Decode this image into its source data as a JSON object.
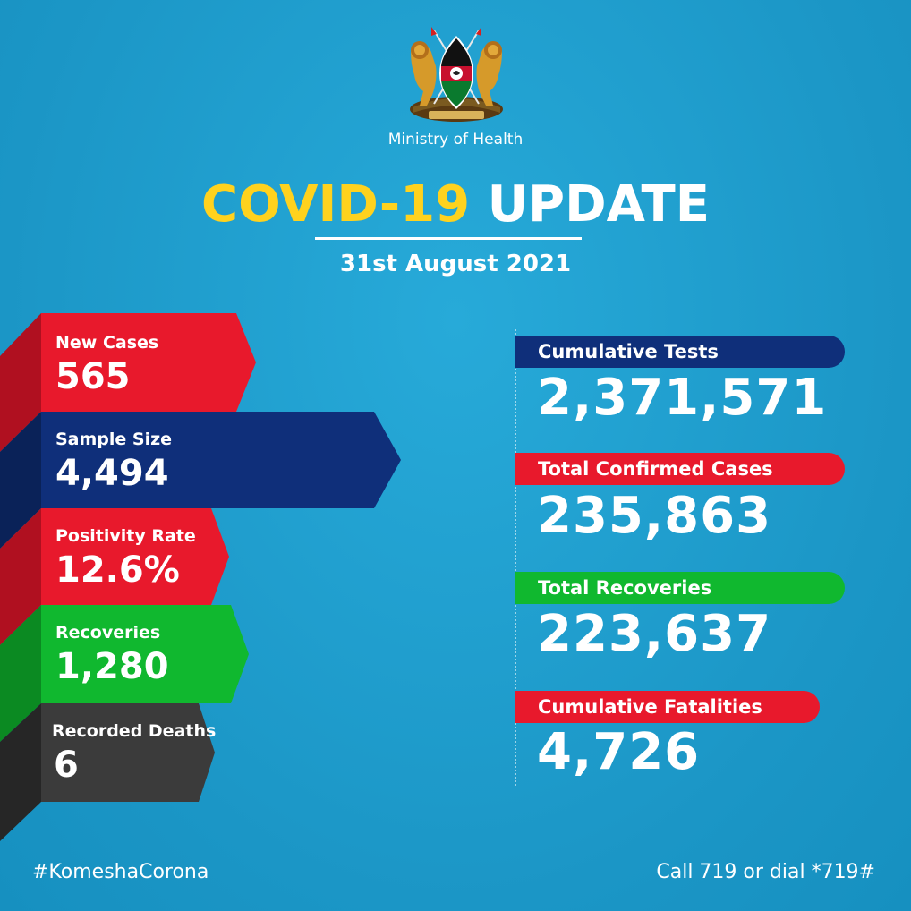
{
  "header": {
    "ministry": "Ministry of Health",
    "title_part1": "COVID-19",
    "title_part2": "UPDATE",
    "date": "31st August 2021",
    "emblem_icon": "kenya-coat-of-arms-icon"
  },
  "daily_stats": [
    {
      "label": "New Cases",
      "value": "565",
      "color": "#e8192c"
    },
    {
      "label": "Sample Size",
      "value": "4,494",
      "color": "#0f2f7a"
    },
    {
      "label": "Positivity Rate",
      "value": "12.6%",
      "color": "#e8192c"
    },
    {
      "label": "Recoveries",
      "value": "1,280",
      "color": "#10b82f"
    },
    {
      "label": "Recorded Deaths",
      "value": "6",
      "color": "#3b3b3b"
    }
  ],
  "cumulative_stats": [
    {
      "label": "Cumulative Tests",
      "value": "2,371,571",
      "color": "#0f2f7a"
    },
    {
      "label": "Total Confirmed Cases",
      "value": "235,863",
      "color": "#e8192c"
    },
    {
      "label": "Total Recoveries",
      "value": "223,637",
      "color": "#10b82f"
    },
    {
      "label": "Cumulative Fatalities",
      "value": "4,726",
      "color": "#e8192c"
    }
  ],
  "footer": {
    "hashtag": "#KomeshaCorona",
    "call": "Call 719 or dial *719#"
  },
  "colors": {
    "background": "#1f9fd0",
    "accent_yellow": "#ffd21e"
  }
}
